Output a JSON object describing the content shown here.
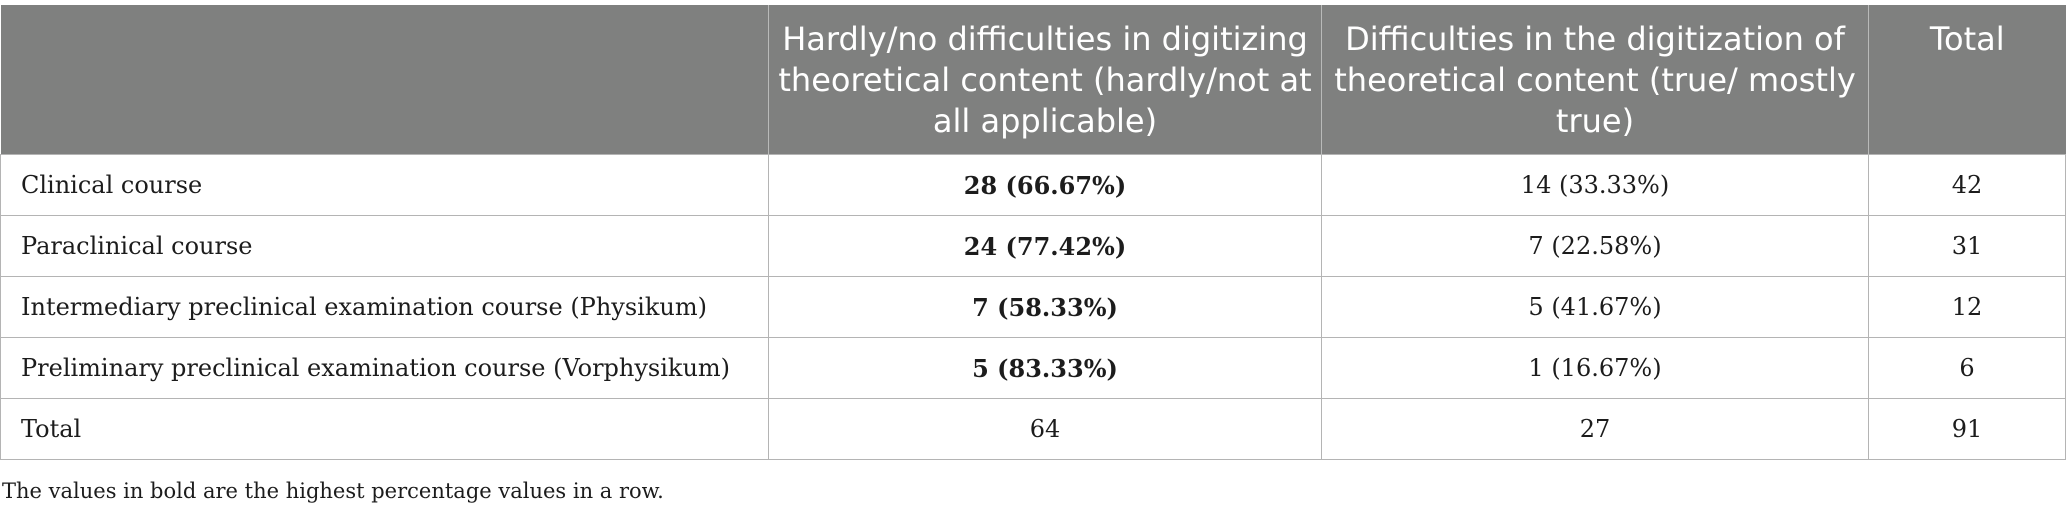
{
  "table": {
    "headers": [
      "",
      "Hardly/no difficulties in digitizing theoretical content (hardly/not at all applicable)",
      "Difficulties in the digitization of theoretical content (true/ mostly true)",
      "Total"
    ],
    "rows": [
      {
        "label": "Clinical course",
        "no_difficulties": "28 (66.67%)",
        "difficulties": "14 (33.33%)",
        "total": "42"
      },
      {
        "label": "Paraclinical course",
        "no_difficulties": "24 (77.42%)",
        "difficulties": "7 (22.58%)",
        "total": "31"
      },
      {
        "label": "Intermediary preclinical examination course (Physikum)",
        "no_difficulties": "7 (58.33%)",
        "difficulties": "5 (41.67%)",
        "total": "12"
      },
      {
        "label": "Preliminary preclinical examination course (Vorphysikum)",
        "no_difficulties": "5 (83.33%)",
        "difficulties": "1 (16.67%)",
        "total": "6"
      },
      {
        "label": "Total",
        "no_difficulties": "64",
        "difficulties": "27",
        "total": "91"
      }
    ]
  },
  "footnote": "The values in bold are the highest percentage values in a row."
}
